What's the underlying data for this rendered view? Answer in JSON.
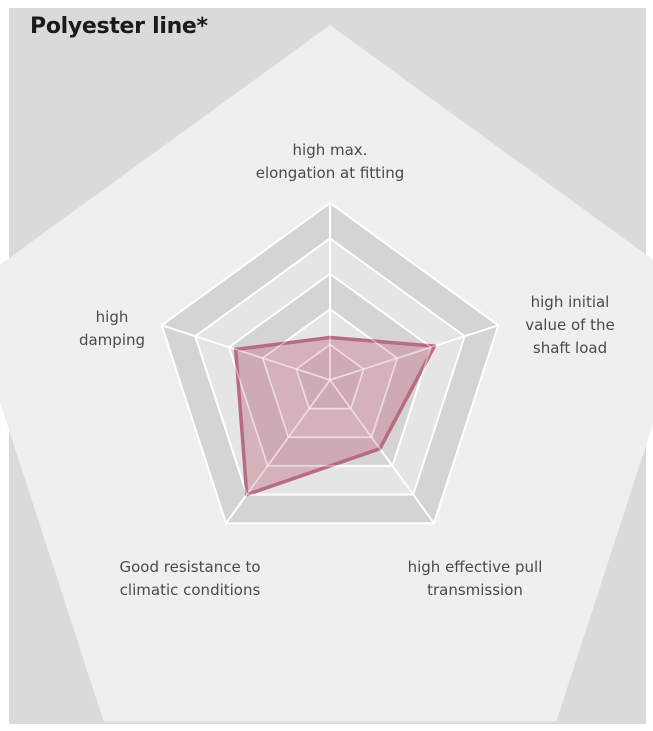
{
  "chart_data": {
    "type": "radar",
    "title": "Polyester line*",
    "axes": [
      "high max.\nelongation at fitting",
      "high initial\nvalue of the\nshaft load",
      "high effective pull\ntransmission",
      "Good resistance to\nclimatic conditions",
      "high\ndamping"
    ],
    "levels": 5,
    "range": [
      0,
      5
    ],
    "series": [
      {
        "values": [
          1.2,
          3.1,
          2.4,
          4.0,
          2.8
        ]
      }
    ],
    "grid": true,
    "colors": {
      "series_fill": "#c98896",
      "series_stroke": "#b96b83",
      "panel_bg": "#dadada",
      "outer_shape": "#efefef",
      "grid_ring_dark": "#d4d4d4",
      "grid_ring_light": "#e5e5e5",
      "grid_line": "#ffffff"
    }
  }
}
